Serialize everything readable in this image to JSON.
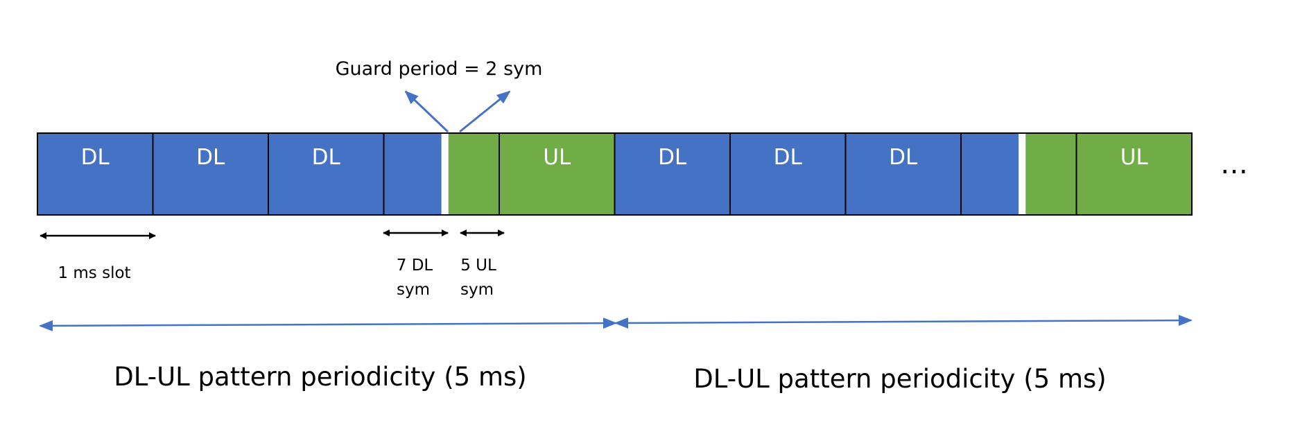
{
  "guard_period": {
    "label": "Guard period = 2 sym"
  },
  "colors": {
    "downlink": "#4472c4",
    "uplink": "#70ad47",
    "guard": "#ffffff",
    "border": "#000000",
    "arrow_black": "#000000",
    "arrow_blue": "#4472c4"
  },
  "periods": [
    {
      "label": "DL-UL pattern periodicity (5 ms)",
      "slots": [
        {
          "type": "DL",
          "label": "DL"
        },
        {
          "type": "DL",
          "label": "DL"
        },
        {
          "type": "DL",
          "label": "DL"
        },
        {
          "type": "special",
          "label": ""
        },
        {
          "type": "UL",
          "label": "UL"
        }
      ]
    },
    {
      "label": "DL-UL pattern periodicity (5 ms)",
      "slots": [
        {
          "type": "DL",
          "label": "DL"
        },
        {
          "type": "DL",
          "label": "DL"
        },
        {
          "type": "DL",
          "label": "DL"
        },
        {
          "type": "special",
          "label": ""
        },
        {
          "type": "UL",
          "label": "UL"
        }
      ]
    }
  ],
  "special_slot": {
    "dl_symbols": 7,
    "guard_symbols": 2,
    "ul_symbols": 5
  },
  "annotations": {
    "slot_duration": "1 ms slot",
    "dl_sym_line1": "7 DL",
    "dl_sym_line2": "sym",
    "ul_sym_line1": "5 UL",
    "ul_sym_line2": "sym"
  },
  "continuation": "…"
}
